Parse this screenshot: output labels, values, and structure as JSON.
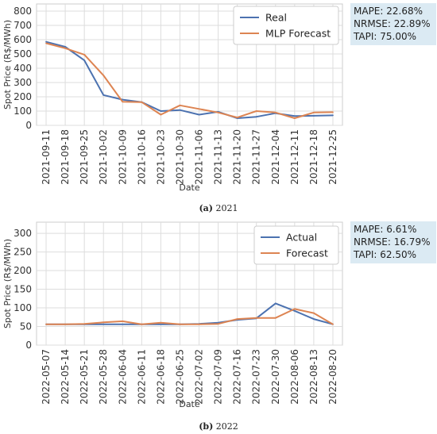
{
  "chart_data": [
    {
      "type": "line",
      "caption_prefix": "(a)",
      "caption_text": " 2021",
      "xlabel": "Date",
      "ylabel": "Spot Price (R$/MWh)",
      "ylim": [
        0,
        850
      ],
      "yticks": [
        0,
        100,
        200,
        300,
        400,
        500,
        600,
        700,
        800
      ],
      "grid": true,
      "legend_position": "top-right",
      "x": [
        "2021-09-11",
        "2021-09-18",
        "2021-09-25",
        "2021-10-02",
        "2021-10-09",
        "2021-10-16",
        "2021-10-23",
        "2021-10-30",
        "2021-11-06",
        "2021-11-13",
        "2021-11-20",
        "2021-11-27",
        "2021-12-04",
        "2021-12-11",
        "2021-12-18",
        "2021-12-25"
      ],
      "series": [
        {
          "name": "Real",
          "color": "#4c72b0",
          "values": [
            585,
            550,
            455,
            212,
            180,
            163,
            100,
            107,
            75,
            95,
            50,
            60,
            85,
            65,
            67,
            70
          ]
        },
        {
          "name": "MLP Forecast",
          "color": "#dd8452",
          "values": [
            575,
            540,
            495,
            350,
            165,
            163,
            75,
            140,
            115,
            90,
            55,
            100,
            90,
            50,
            90,
            92
          ]
        }
      ],
      "metrics": [
        "MAPE: 22.68%",
        "NRMSE: 22.89%",
        "TAPI: 75.00%"
      ]
    },
    {
      "type": "line",
      "caption_prefix": "(b)",
      "caption_text": " 2022",
      "xlabel": "Date",
      "ylabel": "Spot Price (R$/MWh)",
      "ylim": [
        0,
        330
      ],
      "yticks": [
        0,
        50,
        100,
        150,
        200,
        250,
        300
      ],
      "grid": true,
      "legend_position": "top-right",
      "x": [
        "2022-05-07",
        "2022-05-14",
        "2022-05-21",
        "2022-05-28",
        "2022-06-04",
        "2022-06-11",
        "2022-06-18",
        "2022-06-25",
        "2022-07-02",
        "2022-07-09",
        "2022-07-16",
        "2022-07-23",
        "2022-07-30",
        "2022-08-06",
        "2022-08-13",
        "2022-08-20"
      ],
      "series": [
        {
          "name": "Actual",
          "color": "#4c72b0",
          "values": [
            56,
            56,
            56,
            56,
            56,
            56,
            56,
            56,
            57,
            60,
            68,
            72,
            112,
            92,
            70,
            56
          ]
        },
        {
          "name": "Forecast",
          "color": "#dd8452",
          "values": [
            56,
            56,
            57,
            61,
            64,
            56,
            60,
            56,
            56,
            57,
            70,
            73,
            73,
            97,
            86,
            56
          ]
        }
      ],
      "metrics": [
        "MAPE: 6.61%",
        "NRMSE: 16.79%",
        "TAPI: 62.50%"
      ]
    }
  ]
}
